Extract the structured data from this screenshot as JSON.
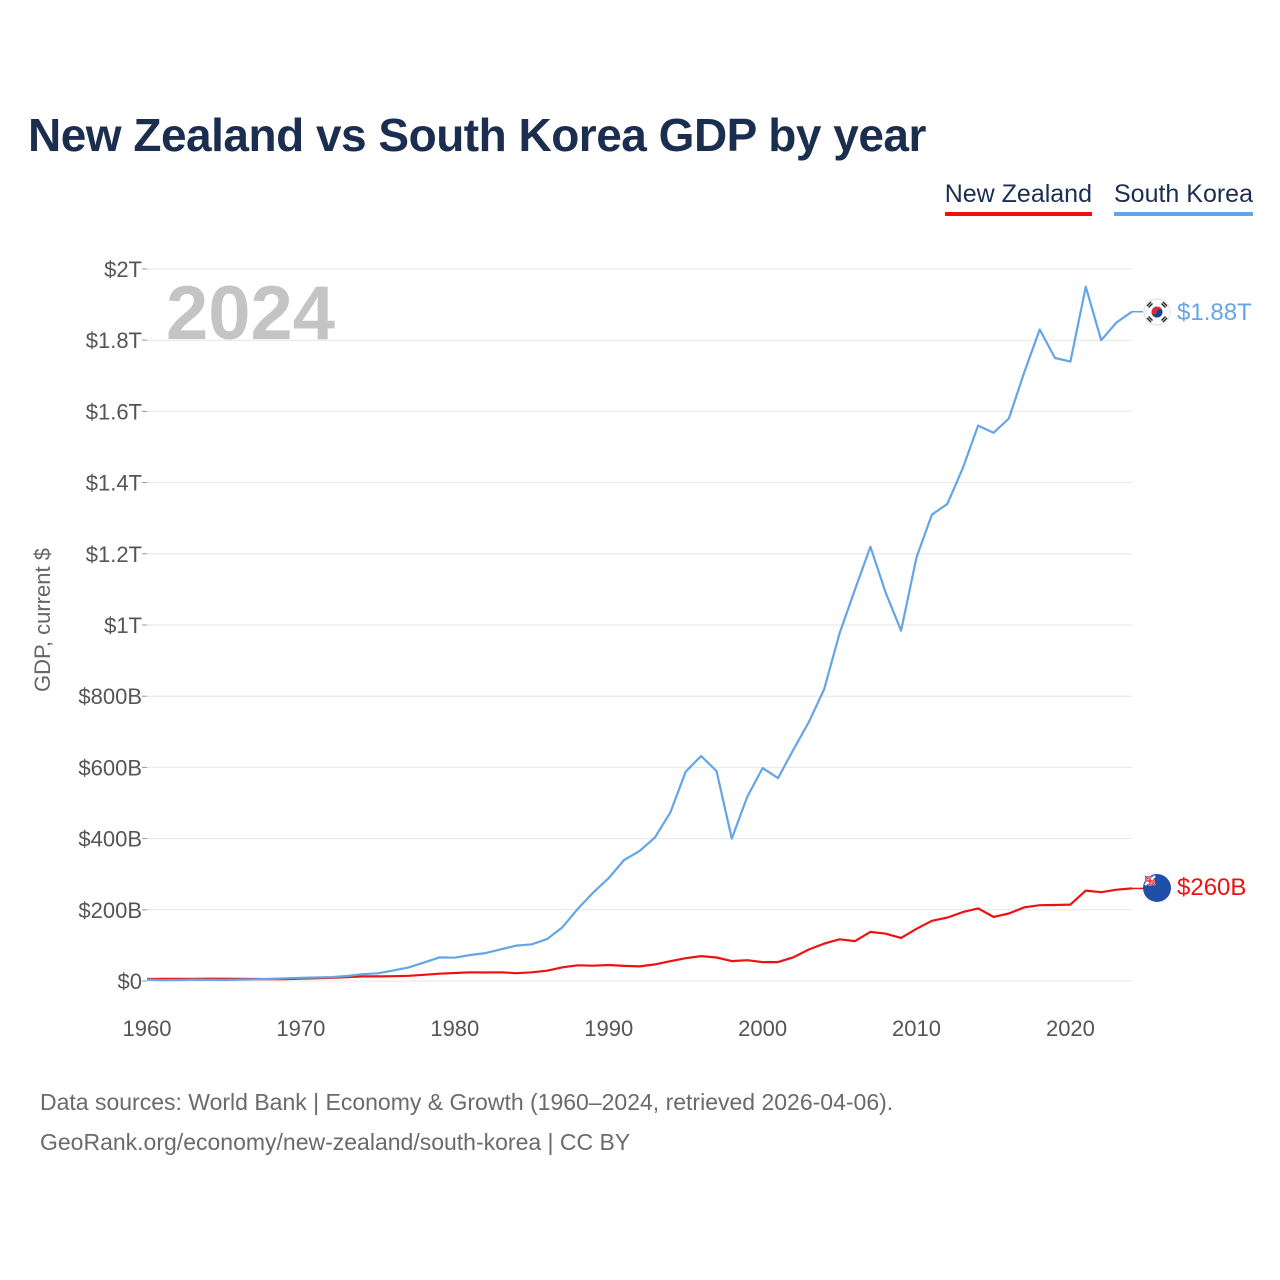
{
  "colors": {
    "title": "#1b2e4f",
    "new_zealand": "#ee1111",
    "south_korea": "#64a5e6",
    "grid": "#e6e6e6",
    "year_watermark": "#c4c4c4"
  },
  "icons": {
    "south_korea": "south-korea-flag-icon",
    "new_zealand": "new-zealand-flag-icon"
  },
  "sources": {
    "line1": "Data sources: World Bank | Economy & Growth (1960–2024, retrieved 2026-04-06).",
    "line2": "GeoRank.org/economy/new-zealand/south-korea | CC BY"
  },
  "chart_data": {
    "type": "line",
    "title": "New Zealand vs South Korea GDP by year",
    "ylabel": "GDP, current $",
    "xlabel": "",
    "year_label": "2024",
    "xlim": [
      1960,
      2024
    ],
    "ylim": [
      0,
      2000
    ],
    "unit": "billions USD",
    "x_ticks": [
      {
        "value": 1960,
        "label": "1960"
      },
      {
        "value": 1970,
        "label": "1970"
      },
      {
        "value": 1980,
        "label": "1980"
      },
      {
        "value": 1990,
        "label": "1990"
      },
      {
        "value": 2000,
        "label": "2000"
      },
      {
        "value": 2010,
        "label": "2010"
      },
      {
        "value": 2020,
        "label": "2020"
      }
    ],
    "y_ticks": [
      {
        "value": 0,
        "label": "$0"
      },
      {
        "value": 200,
        "label": "$200B"
      },
      {
        "value": 400,
        "label": "$400B"
      },
      {
        "value": 600,
        "label": "$600B"
      },
      {
        "value": 800,
        "label": "$800B"
      },
      {
        "value": 1000,
        "label": "$1T"
      },
      {
        "value": 1200,
        "label": "$1.2T"
      },
      {
        "value": 1400,
        "label": "$1.4T"
      },
      {
        "value": 1600,
        "label": "$1.6T"
      },
      {
        "value": 1800,
        "label": "$1.8T"
      },
      {
        "value": 2000,
        "label": "$2T"
      }
    ],
    "legend": [
      "New Zealand",
      "South Korea"
    ],
    "legend_position": "top-right",
    "x": [
      1960,
      1961,
      1962,
      1963,
      1964,
      1965,
      1966,
      1967,
      1968,
      1969,
      1970,
      1971,
      1972,
      1973,
      1974,
      1975,
      1976,
      1977,
      1978,
      1979,
      1980,
      1981,
      1982,
      1983,
      1984,
      1985,
      1986,
      1987,
      1988,
      1989,
      1990,
      1991,
      1992,
      1993,
      1994,
      1995,
      1996,
      1997,
      1998,
      1999,
      2000,
      2001,
      2002,
      2003,
      2004,
      2005,
      2006,
      2007,
      2008,
      2009,
      2010,
      2011,
      2012,
      2013,
      2014,
      2015,
      2016,
      2017,
      2018,
      2019,
      2020,
      2021,
      2022,
      2023,
      2024
    ],
    "series": [
      {
        "name": "New Zealand",
        "end_label": "$260B",
        "values": [
          5.5,
          5.8,
          6.0,
          6.3,
          6.6,
          6.4,
          5.8,
          5.5,
          5.2,
          5.0,
          6.5,
          7.5,
          9.0,
          11.0,
          13.0,
          13.0,
          13.5,
          14.5,
          17.5,
          20.5,
          22.5,
          24.5,
          24.0,
          24.5,
          22.0,
          24.5,
          29.0,
          38.5,
          44.0,
          43.0,
          45.0,
          42.5,
          41.0,
          46.5,
          55.5,
          64.0,
          70.0,
          66.0,
          56.0,
          58.5,
          53.0,
          53.0,
          66.5,
          88.5,
          105.0,
          117.0,
          112.0,
          138.0,
          133.0,
          121.0,
          146.5,
          169.0,
          178.0,
          193.5,
          204.0,
          180.0,
          189.5,
          207.0,
          213.0,
          213.5,
          214.5,
          254.0,
          249.5,
          256.5,
          260.0
        ]
      },
      {
        "name": "South Korea",
        "end_label": "$1.88T",
        "values": [
          4.0,
          2.4,
          2.8,
          3.9,
          3.5,
          3.1,
          3.8,
          4.7,
          5.9,
          7.5,
          9.1,
          9.9,
          10.9,
          14.0,
          19.0,
          21.5,
          29.8,
          38.3,
          51.7,
          66.4,
          65.4,
          72.9,
          78.4,
          89.1,
          99.4,
          103.0,
          118.0,
          151.0,
          203.0,
          249.0,
          289.0,
          340.0,
          365.0,
          403.0,
          473.0,
          588.0,
          632.0,
          590.0,
          400.0,
          517.0,
          598.0,
          570.0,
          650.0,
          727.0,
          820.0,
          977.0,
          1100.0,
          1220.0,
          1090.0,
          984.0,
          1190.0,
          1310.0,
          1340.0,
          1440.0,
          1560.0,
          1540.0,
          1580.0,
          1710.0,
          1830.0,
          1750.0,
          1740.0,
          1950.0,
          1800.0,
          1850.0,
          1880.0
        ]
      }
    ]
  }
}
